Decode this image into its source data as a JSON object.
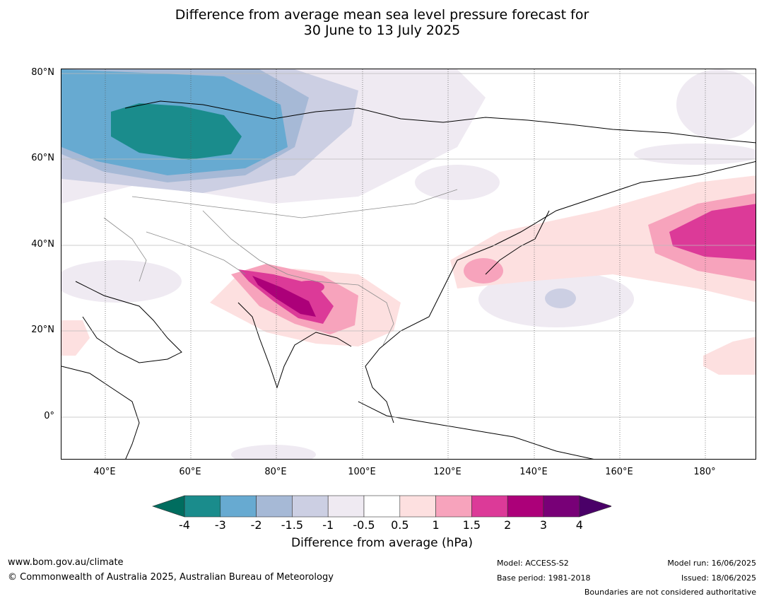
{
  "title_line1": "Difference from average mean sea level pressure forecast for",
  "title_line2": "30 June to 13 July 2025",
  "map": {
    "lat_labels": [
      "80°N",
      "60°N",
      "40°N",
      "20°N",
      "0°"
    ],
    "lon_labels": [
      "40°E",
      "60°E",
      "80°E",
      "100°E",
      "120°E",
      "140°E",
      "160°E",
      "180°"
    ]
  },
  "colorbar": {
    "ticks": [
      "-4",
      "-3",
      "-2",
      "-1.5",
      "-1",
      "-0.5",
      "0.5",
      "1",
      "1.5",
      "2",
      "3",
      "4"
    ],
    "colors": [
      "#1a8c8c",
      "#67aad1",
      "#a6b9d6",
      "#cccfe3",
      "#efeaf2",
      "#ffffff",
      "#fde0e0",
      "#f7a3bc",
      "#dc3a98",
      "#ac0079",
      "#780077"
    ],
    "under_color": "#006d5f",
    "over_color": "#4a0068",
    "label": "Difference from average (hPa)"
  },
  "footer": {
    "url": "www.bom.gov.au/climate",
    "copyright": "© Commonwealth of Australia 2025, Australian Bureau of Meteorology",
    "model": "Model: ACCESS-S2",
    "base_period": "Base period: 1981-2018",
    "model_run": "Model run: 16/06/2025",
    "issued": "Issued: 18/06/2025",
    "disclaimer": "Boundaries are not considered authoritative"
  }
}
